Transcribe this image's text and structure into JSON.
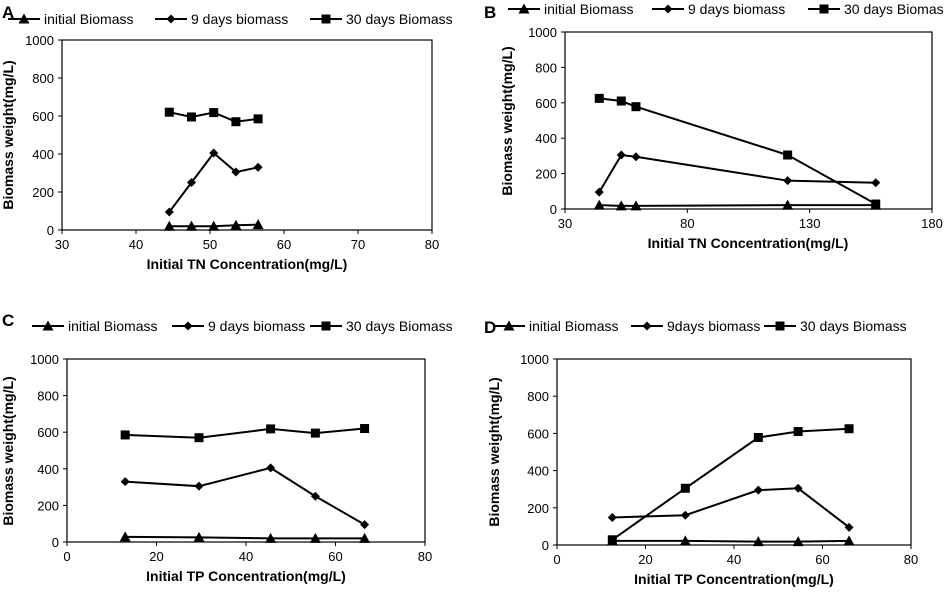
{
  "chart_data": [
    {
      "panel": "A",
      "type": "line",
      "xlabel": "Initial TN Concentration(mg/L)",
      "ylabel": "Biomass weight(mg/L)",
      "xlim": [
        30,
        80
      ],
      "ylim": [
        0,
        1000
      ],
      "xticks": [
        30,
        40,
        50,
        60,
        70,
        80
      ],
      "yticks": [
        0,
        200,
        400,
        600,
        800,
        1000
      ],
      "series": [
        {
          "name": "initial Biomass",
          "marker": "triangle",
          "x": [
            44.5,
            47.5,
            50.5,
            53.5,
            56.5
          ],
          "y": [
            20,
            20,
            20,
            25,
            28
          ]
        },
        {
          "name": "9 days biomass",
          "marker": "diamond",
          "x": [
            44.5,
            47.5,
            50.5,
            53.5,
            56.5
          ],
          "y": [
            95,
            250,
            405,
            305,
            330
          ]
        },
        {
          "name": "30 days Biomass",
          "marker": "square",
          "x": [
            44.5,
            47.5,
            50.5,
            53.5,
            56.5
          ],
          "y": [
            620,
            595,
            618,
            570,
            585
          ]
        }
      ]
    },
    {
      "panel": "B",
      "type": "line",
      "xlabel": "Initial TN Concentration(mg/L)",
      "ylabel": "Biomass weight(mg/L)",
      "xlim": [
        30,
        180
      ],
      "ylim": [
        0,
        1000
      ],
      "xticks": [
        30,
        80,
        130,
        180
      ],
      "yticks": [
        0,
        200,
        400,
        600,
        800,
        1000
      ],
      "series": [
        {
          "name": "initial Biomass",
          "marker": "triangle",
          "x": [
            44,
            53,
            59,
            121,
            157
          ],
          "y": [
            22,
            18,
            18,
            22,
            22
          ]
        },
        {
          "name": "9 days biomass",
          "marker": "diamond",
          "x": [
            44,
            53,
            59,
            121,
            157
          ],
          "y": [
            95,
            305,
            295,
            160,
            148
          ]
        },
        {
          "name": "30 days Biomass",
          "marker": "square",
          "x": [
            44,
            53,
            59,
            121,
            157
          ],
          "y": [
            625,
            610,
            578,
            305,
            28
          ]
        }
      ]
    },
    {
      "panel": "C",
      "type": "line",
      "xlabel": "Initial TP Concentration(mg/L)",
      "ylabel": "Biomass weight(mg/L)",
      "xlim": [
        0,
        80
      ],
      "ylim": [
        0,
        1000
      ],
      "xticks": [
        0,
        20,
        40,
        60,
        80
      ],
      "yticks": [
        0,
        200,
        400,
        600,
        800,
        1000
      ],
      "series": [
        {
          "name": "initial Biomass",
          "marker": "triangle",
          "x": [
            13,
            29.5,
            45.5,
            55.5,
            66.5
          ],
          "y": [
            28,
            25,
            20,
            20,
            20
          ]
        },
        {
          "name": "9 days biomass",
          "marker": "diamond",
          "x": [
            13,
            29.5,
            45.5,
            55.5,
            66.5
          ],
          "y": [
            330,
            305,
            405,
            250,
            95
          ]
        },
        {
          "name": "30 days Biomass",
          "marker": "square",
          "x": [
            13,
            29.5,
            45.5,
            55.5,
            66.5
          ],
          "y": [
            585,
            570,
            618,
            595,
            620
          ]
        }
      ]
    },
    {
      "panel": "D",
      "type": "line",
      "xlabel": "Initial TP Concentration(mg/L)",
      "ylabel": "Biomass weight(mg/L)",
      "xlim": [
        0,
        80
      ],
      "ylim": [
        0,
        1000
      ],
      "xticks": [
        0,
        20,
        40,
        60,
        80
      ],
      "yticks": [
        0,
        200,
        400,
        600,
        800,
        1000
      ],
      "series": [
        {
          "name": "initial Biomass",
          "marker": "triangle",
          "x": [
            12.5,
            29,
            45.5,
            54.5,
            66
          ],
          "y": [
            22,
            22,
            18,
            18,
            22
          ]
        },
        {
          "name": "9days biomass",
          "marker": "diamond",
          "x": [
            12.5,
            29,
            45.5,
            54.5,
            66
          ],
          "y": [
            148,
            160,
            295,
            305,
            95
          ]
        },
        {
          "name": "30 days Biomass",
          "marker": "square",
          "x": [
            12.5,
            29,
            45.5,
            54.5,
            66
          ],
          "y": [
            28,
            305,
            578,
            610,
            625
          ]
        }
      ]
    }
  ]
}
